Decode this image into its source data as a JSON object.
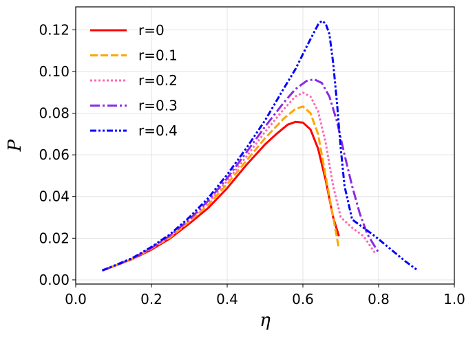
{
  "chart_data": {
    "type": "line",
    "xlabel": "η",
    "ylabel": "P",
    "xlim": [
      0.0,
      1.0
    ],
    "ylim": [
      -0.002,
      0.131
    ],
    "xticks": [
      "0.0",
      "0.2",
      "0.4",
      "0.6",
      "0.8",
      "1.0"
    ],
    "yticks": [
      "0.00",
      "0.02",
      "0.04",
      "0.06",
      "0.08",
      "0.10",
      "0.12"
    ],
    "grid": true,
    "legend_position": "top-left",
    "series": [
      {
        "name": "r=0",
        "color": "#ff0000",
        "style": "solid",
        "x": [
          0.07,
          0.1,
          0.15,
          0.2,
          0.25,
          0.3,
          0.35,
          0.4,
          0.45,
          0.5,
          0.53,
          0.56,
          0.58,
          0.6,
          0.62,
          0.64,
          0.66,
          0.68,
          0.695
        ],
        "y": [
          0.0045,
          0.0065,
          0.01,
          0.0145,
          0.02,
          0.027,
          0.0345,
          0.044,
          0.055,
          0.065,
          0.07,
          0.0745,
          0.0758,
          0.0755,
          0.0722,
          0.063,
          0.048,
          0.03,
          0.021
        ]
      },
      {
        "name": "r=0.1",
        "color": "#ffa500",
        "style": "dashed",
        "x": [
          0.07,
          0.1,
          0.15,
          0.2,
          0.25,
          0.3,
          0.35,
          0.4,
          0.45,
          0.5,
          0.55,
          0.58,
          0.6,
          0.62,
          0.64,
          0.66,
          0.68,
          0.695
        ],
        "y": [
          0.0045,
          0.0066,
          0.01,
          0.015,
          0.0205,
          0.028,
          0.036,
          0.046,
          0.057,
          0.068,
          0.0775,
          0.082,
          0.0832,
          0.08,
          0.07,
          0.05,
          0.03,
          0.015
        ]
      },
      {
        "name": "r=0.2",
        "color": "#ff69b4",
        "style": "dotted",
        "x": [
          0.07,
          0.1,
          0.15,
          0.2,
          0.25,
          0.3,
          0.35,
          0.4,
          0.45,
          0.5,
          0.55,
          0.58,
          0.6,
          0.62,
          0.64,
          0.66,
          0.68,
          0.7,
          0.73,
          0.76,
          0.79
        ],
        "y": [
          0.0045,
          0.0066,
          0.0102,
          0.0152,
          0.021,
          0.0285,
          0.0372,
          0.0475,
          0.059,
          0.071,
          0.082,
          0.088,
          0.0898,
          0.088,
          0.081,
          0.066,
          0.045,
          0.03,
          0.025,
          0.021,
          0.013
        ]
      },
      {
        "name": "r=0.3",
        "color": "#8a2be2",
        "style": "dashdot",
        "x": [
          0.07,
          0.1,
          0.15,
          0.2,
          0.25,
          0.3,
          0.35,
          0.4,
          0.45,
          0.5,
          0.55,
          0.58,
          0.61,
          0.63,
          0.65,
          0.67,
          0.69,
          0.71,
          0.73,
          0.75,
          0.77,
          0.8
        ],
        "y": [
          0.0045,
          0.0066,
          0.0103,
          0.0154,
          0.0214,
          0.029,
          0.038,
          0.0488,
          0.061,
          0.0735,
          0.0852,
          0.0915,
          0.0955,
          0.0962,
          0.0945,
          0.088,
          0.076,
          0.06,
          0.045,
          0.032,
          0.022,
          0.013
        ]
      },
      {
        "name": "r=0.4",
        "color": "#0000ff",
        "style": "dashdotdot",
        "x": [
          0.07,
          0.1,
          0.15,
          0.2,
          0.25,
          0.3,
          0.35,
          0.4,
          0.45,
          0.5,
          0.55,
          0.58,
          0.61,
          0.63,
          0.64,
          0.65,
          0.66,
          0.67,
          0.68,
          0.69,
          0.7,
          0.71,
          0.73,
          0.76,
          0.79,
          0.83,
          0.87,
          0.9
        ],
        "y": [
          0.0045,
          0.0067,
          0.0105,
          0.0158,
          0.022,
          0.03,
          0.0393,
          0.0505,
          0.063,
          0.0765,
          0.092,
          0.101,
          0.112,
          0.119,
          0.1225,
          0.1243,
          0.123,
          0.118,
          0.104,
          0.085,
          0.063,
          0.045,
          0.029,
          0.025,
          0.021,
          0.015,
          0.009,
          0.005
        ]
      }
    ]
  }
}
